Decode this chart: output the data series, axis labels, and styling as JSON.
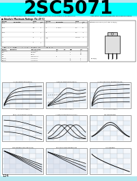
{
  "title": "2SC5071",
  "title_bg": "#00FFFF",
  "title_fontsize": 20,
  "page_bg": "#B8E8F0",
  "subtitle_left": "Silicon NPN Triple-Diffused Planar Transistor",
  "subtitle_mid": "For Switch and High-Concentration Ring Transistors",
  "subtitle_right": "Application: Switching Regulator and General Purpose",
  "page_number": "124",
  "graph_titles_row1": [
    "IC-VCE Characteristics (Typical)",
    "IC(sat)-IB Characteristics (Typical)",
    "IC-VCE Temperature Characteristics (Typ.)"
  ],
  "graph_titles_row2": [
    "Base-Ic Characteristics (Typical)",
    "Ic-Ic(sat)/Ib Characteristics (Typical)",
    "hFE Characteristics"
  ],
  "graph_titles_row3": [
    "Safe Operating Area (Single Pulse)",
    "Reverse Bias Safe Operating Area",
    "fT-IC Operating"
  ],
  "chart_bg": "#FFFFFF",
  "chart_grid": "#CCCCCC",
  "chart_border": "#888888"
}
